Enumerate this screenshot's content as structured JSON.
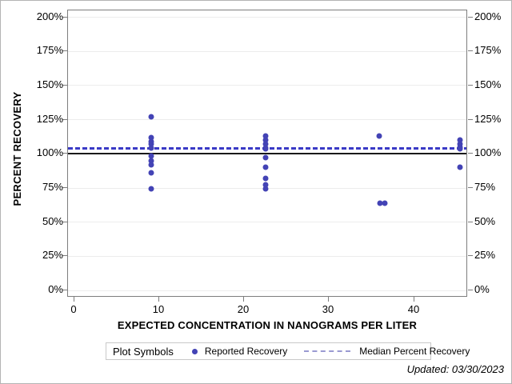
{
  "figure": {
    "footnote": "Updated: 03/30/2023"
  },
  "chart_data": {
    "type": "scatter",
    "title": "",
    "xlabel": "EXPECTED CONCENTRATION IN NANOGRAMS PER LITER",
    "ylabel": "PERCENT RECOVERY",
    "xlim": [
      -0.7,
      46.2
    ],
    "ylim": [
      -4,
      205
    ],
    "grid": "horizontal-only",
    "x_ticks": [
      {
        "v": 0,
        "label": "0"
      },
      {
        "v": 10,
        "label": "10"
      },
      {
        "v": 20,
        "label": "20"
      },
      {
        "v": 30,
        "label": "30"
      },
      {
        "v": 40,
        "label": "40"
      }
    ],
    "y_ticks": [
      {
        "v": 0,
        "label": "0%"
      },
      {
        "v": 25,
        "label": "25%"
      },
      {
        "v": 50,
        "label": "50%"
      },
      {
        "v": 75,
        "label": "75%"
      },
      {
        "v": 100,
        "label": "100%"
      },
      {
        "v": 125,
        "label": "125%"
      },
      {
        "v": 150,
        "label": "150%"
      },
      {
        "v": 175,
        "label": "175%"
      },
      {
        "v": 200,
        "label": "200%"
      }
    ],
    "series": [
      {
        "name": "Reported Recovery",
        "type": "scatter",
        "marker": "circle",
        "color": "#4343b5",
        "points": [
          [
            9.1,
            127
          ],
          [
            9.1,
            112
          ],
          [
            9.1,
            109
          ],
          [
            9.1,
            107
          ],
          [
            9.1,
            104.5
          ],
          [
            9.1,
            98.5
          ],
          [
            9.1,
            95
          ],
          [
            9.1,
            92
          ],
          [
            9.1,
            86
          ],
          [
            9.1,
            74.5
          ],
          [
            22.6,
            113
          ],
          [
            22.6,
            110
          ],
          [
            22.6,
            107
          ],
          [
            22.6,
            104.5
          ],
          [
            22.6,
            103.5
          ],
          [
            22.6,
            97
          ],
          [
            22.6,
            90
          ],
          [
            22.6,
            82
          ],
          [
            22.6,
            77.5
          ],
          [
            22.6,
            74.5
          ],
          [
            35.9,
            113
          ],
          [
            36.0,
            64
          ],
          [
            36.6,
            64
          ],
          [
            45.4,
            110
          ],
          [
            45.4,
            107
          ],
          [
            45.4,
            105
          ],
          [
            45.4,
            103.5
          ],
          [
            45.4,
            90
          ]
        ]
      },
      {
        "name": "Median Percent Recovery",
        "type": "hline",
        "value": 104.3,
        "color": "#3a3ac6",
        "line_style": "dashed"
      },
      {
        "name": "100% reference line",
        "type": "hline",
        "value": 100,
        "color": "#1a1a1a",
        "line_style": "solid"
      }
    ],
    "legend": {
      "position": "bottom-center",
      "title": "Plot Symbols",
      "entries": [
        {
          "label": "Reported Recovery",
          "symbol": "dot",
          "color": "#4343b5"
        },
        {
          "label": "Median Percent Recovery",
          "symbol": "dashed-line",
          "color": "#9a9ad2"
        }
      ]
    }
  }
}
